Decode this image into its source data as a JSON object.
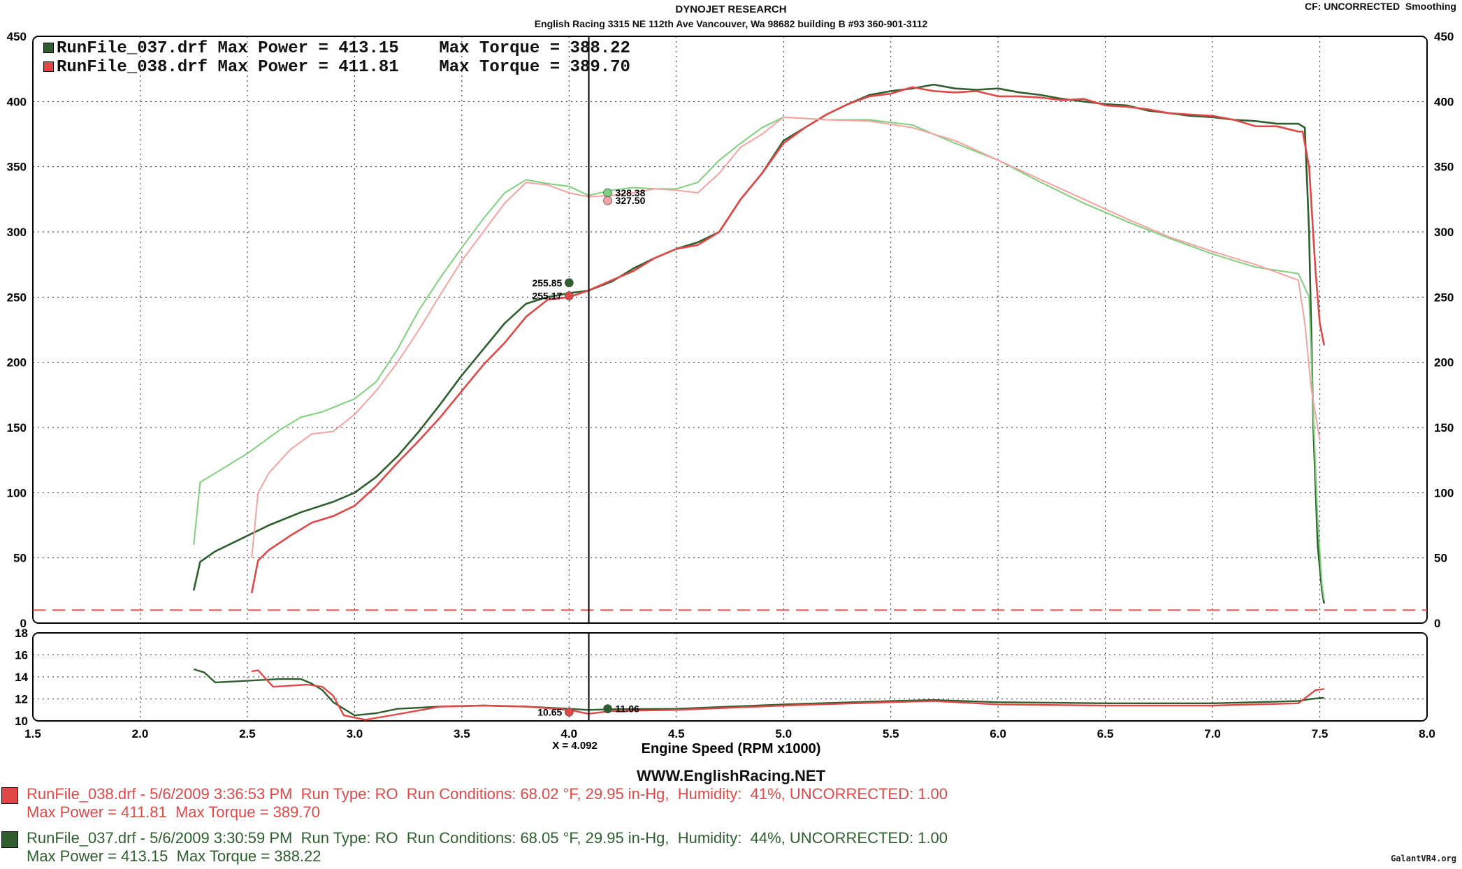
{
  "header": {
    "title": "DYNOJET RESEARCH",
    "address": "English Racing 3315 NE 112th Ave Vancouver, Wa 98682 building B #93 360-901-3112",
    "cf_label": "CF: UNCORRECTED",
    "smoothing_label": "Smoothing"
  },
  "colors": {
    "run037_power": "#2e5e2e",
    "run037_torque": "#7fcf7f",
    "run038_power": "#e04848",
    "run038_torque": "#f4a2a2",
    "grid": "#222222",
    "dashed_ref": "#e05050"
  },
  "legend": [
    {
      "file": "RunFile_037.drf",
      "max_power_label": "Max Power = 413.15",
      "max_torque_label": "Max Torque = 388.22",
      "color": "#2e5e2e"
    },
    {
      "file": "RunFile_038.drf",
      "max_power_label": "Max Power = 411.81",
      "max_torque_label": "Max Torque = 389.70",
      "color": "#e04848"
    }
  ],
  "chart_data": [
    {
      "type": "line",
      "xlabel": "Engine Speed (RPM x1000)",
      "ylabel": "",
      "xlim": [
        1.5,
        8.0
      ],
      "ylim": [
        0,
        450
      ],
      "x_ticks": [
        "1.5",
        "2.0",
        "2.5",
        "3.0",
        "3.5",
        "4.0",
        "4.5",
        "5.0",
        "5.5",
        "6.0",
        "6.5",
        "7.0",
        "7.5",
        "8.0"
      ],
      "y_ticks": [
        "0",
        "50",
        "100",
        "150",
        "200",
        "250",
        "300",
        "350",
        "400",
        "450"
      ],
      "cursor_x": 4.092,
      "cursor_label": "X = 4.092",
      "dashed_reference_y": 10,
      "grid": true,
      "series": [
        {
          "name": "RunFile_037.drf",
          "kind": "power",
          "color": "#2e5e2e",
          "x": [
            2.25,
            2.28,
            2.35,
            2.45,
            2.6,
            2.75,
            2.9,
            3.0,
            3.1,
            3.2,
            3.3,
            3.4,
            3.5,
            3.6,
            3.7,
            3.8,
            3.9,
            4.0,
            4.09,
            4.2,
            4.3,
            4.4,
            4.5,
            4.6,
            4.7,
            4.8,
            4.9,
            5.0,
            5.1,
            5.2,
            5.3,
            5.4,
            5.5,
            5.6,
            5.7,
            5.8,
            5.9,
            6.0,
            6.1,
            6.2,
            6.3,
            6.4,
            6.5,
            6.6,
            6.7,
            6.8,
            6.9,
            7.0,
            7.1,
            7.2,
            7.3,
            7.4,
            7.43,
            7.45,
            7.47,
            7.49,
            7.51,
            7.52
          ],
          "y": [
            25,
            47,
            55,
            63,
            75,
            85,
            93,
            100,
            112,
            128,
            147,
            168,
            190,
            210,
            230,
            245,
            250,
            253,
            255,
            262,
            272,
            280,
            287,
            292,
            300,
            325,
            345,
            370,
            380,
            390,
            398,
            405,
            408,
            410,
            413,
            410,
            409,
            410,
            407,
            405,
            402,
            400,
            398,
            397,
            393,
            391,
            389,
            388,
            386,
            385,
            383,
            383,
            380,
            300,
            150,
            60,
            25,
            15
          ]
        },
        {
          "name": "RunFile_038.drf",
          "kind": "power",
          "color": "#e04848",
          "x": [
            2.52,
            2.55,
            2.6,
            2.7,
            2.8,
            2.9,
            3.0,
            3.1,
            3.2,
            3.3,
            3.4,
            3.5,
            3.6,
            3.7,
            3.8,
            3.9,
            4.0,
            4.09,
            4.2,
            4.3,
            4.4,
            4.5,
            4.6,
            4.7,
            4.8,
            4.9,
            5.0,
            5.1,
            5.2,
            5.3,
            5.4,
            5.5,
            5.6,
            5.7,
            5.8,
            5.9,
            6.0,
            6.1,
            6.2,
            6.3,
            6.4,
            6.5,
            6.6,
            6.7,
            6.8,
            6.9,
            7.0,
            7.1,
            7.2,
            7.3,
            7.4,
            7.42,
            7.45,
            7.48,
            7.5,
            7.52
          ],
          "y": [
            23,
            48,
            56,
            67,
            77,
            82,
            90,
            105,
            123,
            140,
            158,
            178,
            198,
            215,
            235,
            248,
            250,
            255,
            263,
            270,
            280,
            287,
            290,
            300,
            325,
            345,
            368,
            380,
            390,
            398,
            404,
            406,
            411,
            408,
            407,
            408,
            404,
            404,
            403,
            401,
            402,
            397,
            396,
            394,
            391,
            390,
            389,
            386,
            381,
            381,
            377,
            377,
            350,
            270,
            230,
            213
          ]
        },
        {
          "name": "RunFile_037.drf",
          "kind": "torque",
          "color": "#7fcf7f",
          "x": [
            2.25,
            2.28,
            2.35,
            2.5,
            2.65,
            2.75,
            2.85,
            3.0,
            3.1,
            3.2,
            3.3,
            3.4,
            3.5,
            3.6,
            3.7,
            3.8,
            3.9,
            4.0,
            4.09,
            4.2,
            4.3,
            4.4,
            4.5,
            4.6,
            4.7,
            4.8,
            4.9,
            5.0,
            5.2,
            5.4,
            5.6,
            5.8,
            6.0,
            6.2,
            6.4,
            6.6,
            6.8,
            7.0,
            7.2,
            7.4,
            7.45,
            7.47,
            7.49,
            7.51,
            7.52
          ],
          "y": [
            60,
            108,
            115,
            130,
            148,
            158,
            162,
            172,
            185,
            210,
            240,
            265,
            288,
            310,
            330,
            340,
            337,
            335,
            328,
            332,
            334,
            333,
            333,
            338,
            355,
            368,
            380,
            388,
            386,
            386,
            382,
            368,
            355,
            338,
            322,
            308,
            295,
            283,
            273,
            268,
            250,
            160,
            80,
            30,
            18
          ]
        },
        {
          "name": "RunFile_038.drf",
          "kind": "torque",
          "color": "#f4a2a2",
          "x": [
            2.52,
            2.55,
            2.6,
            2.7,
            2.8,
            2.9,
            3.0,
            3.1,
            3.2,
            3.3,
            3.4,
            3.5,
            3.6,
            3.7,
            3.8,
            3.9,
            4.0,
            4.09,
            4.2,
            4.3,
            4.4,
            4.5,
            4.6,
            4.7,
            4.8,
            4.9,
            5.0,
            5.2,
            5.4,
            5.6,
            5.8,
            6.0,
            6.2,
            6.4,
            6.6,
            6.8,
            7.0,
            7.2,
            7.4,
            7.43,
            7.46,
            7.49,
            7.5
          ],
          "y": [
            50,
            100,
            115,
            133,
            145,
            147,
            160,
            178,
            200,
            225,
            252,
            278,
            300,
            322,
            338,
            336,
            330,
            327,
            328,
            330,
            333,
            332,
            330,
            345,
            365,
            375,
            388,
            386,
            385,
            380,
            370,
            355,
            340,
            325,
            310,
            296,
            285,
            275,
            263,
            230,
            180,
            150,
            140
          ]
        }
      ],
      "annotations": [
        {
          "label": "328.38",
          "x": 4.18,
          "y": 330
        },
        {
          "label": "327.50",
          "x": 4.18,
          "y": 324
        },
        {
          "label": "255.85",
          "x": 4.0,
          "y": 261
        },
        {
          "label": "255.17",
          "x": 4.0,
          "y": 251
        }
      ]
    },
    {
      "type": "line",
      "xlabel": "",
      "ylabel": "",
      "xlim": [
        1.5,
        8.0
      ],
      "ylim": [
        10,
        18
      ],
      "y_ticks": [
        "10",
        "12",
        "14",
        "16",
        "18"
      ],
      "grid": true,
      "series": [
        {
          "name": "RunFile_037.drf",
          "color": "#2e5e2e",
          "x": [
            2.25,
            2.3,
            2.35,
            2.45,
            2.55,
            2.65,
            2.75,
            2.8,
            2.85,
            2.9,
            3.0,
            3.1,
            3.2,
            3.4,
            3.6,
            3.8,
            4.0,
            4.09,
            4.2,
            4.5,
            5.0,
            5.5,
            5.7,
            6.0,
            6.5,
            7.0,
            7.4,
            7.46,
            7.52
          ],
          "y": [
            14.7,
            14.4,
            13.5,
            13.6,
            13.7,
            13.8,
            13.8,
            13.4,
            12.8,
            11.7,
            10.5,
            10.7,
            11.1,
            11.3,
            11.4,
            11.3,
            11.1,
            11.0,
            11.06,
            11.1,
            11.5,
            11.8,
            11.9,
            11.7,
            11.6,
            11.6,
            11.8,
            12.0,
            12.1
          ]
        },
        {
          "name": "RunFile_038.drf",
          "color": "#e04848",
          "x": [
            2.52,
            2.55,
            2.62,
            2.7,
            2.78,
            2.85,
            2.9,
            2.95,
            3.05,
            3.2,
            3.4,
            3.6,
            3.8,
            4.0,
            4.09,
            4.2,
            4.5,
            5.0,
            5.5,
            5.7,
            6.0,
            6.5,
            7.0,
            7.4,
            7.44,
            7.48,
            7.52
          ],
          "y": [
            14.5,
            14.6,
            13.1,
            13.2,
            13.3,
            13.1,
            12.3,
            10.5,
            10.1,
            10.6,
            11.3,
            11.4,
            11.3,
            11.0,
            10.65,
            10.9,
            11.0,
            11.4,
            11.7,
            11.8,
            11.5,
            11.4,
            11.4,
            11.6,
            12.2,
            12.8,
            12.9
          ]
        }
      ],
      "annotations": [
        {
          "label": "10.65",
          "x": 4.0,
          "y": 10.8
        },
        {
          "label": "11.06",
          "x": 4.18,
          "y": 11.1
        }
      ]
    }
  ],
  "website": "WWW.EnglishRacing.NET",
  "footer": [
    {
      "line1": "RunFile_038.drf - 5/6/2009 3:36:53 PM  Run Type: RO  Run Conditions: 68.02 °F, 29.95 in-Hg,  Humidity:  41%, UNCORRECTED: 1.00",
      "line2": "Max Power = 411.81  Max Torque = 389.70",
      "color": "#e04848"
    },
    {
      "line1": "RunFile_037.drf - 5/6/2009 3:30:59 PM  Run Type: RO  Run Conditions: 68.05 °F, 29.95 in-Hg,  Humidity:  44%, UNCORRECTED: 1.00",
      "line2": "Max Power = 413.15  Max Torque = 388.22",
      "color": "#2e5e2e"
    }
  ],
  "watermark": "GalantVR4.org"
}
